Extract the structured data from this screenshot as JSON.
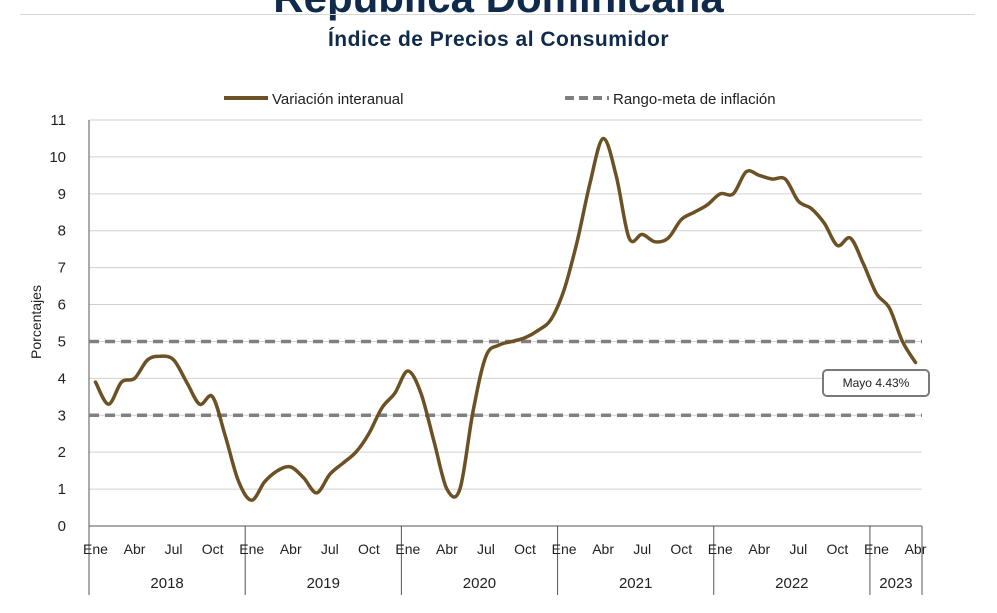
{
  "header": {
    "title": "República Dominicana",
    "subtitle": "Índice de Precios al Consumidor"
  },
  "chart_data": {
    "type": "line",
    "ylabel": "Porcentajes",
    "ylim": [
      0,
      11
    ],
    "yticks": [
      "0",
      "1",
      "2",
      "3",
      "4",
      "5",
      "6",
      "7",
      "8",
      "9",
      "10",
      "11"
    ],
    "grid": true,
    "legend_position": "top",
    "month_ticks": [
      "Ene",
      "Abr",
      "Jul",
      "Oct",
      "Ene",
      "Abr",
      "Jul",
      "Oct",
      "Ene",
      "Abr",
      "Jul",
      "Oct",
      "Ene",
      "Abr",
      "Jul",
      "Oct",
      "Ene",
      "Abr",
      "Jul",
      "Oct",
      "Ene",
      "Abr"
    ],
    "years": [
      "2018",
      "2019",
      "2020",
      "2021",
      "2022",
      "2023"
    ],
    "series": [
      {
        "name": "Variación interanual",
        "color": "#6b5124",
        "style": "solid",
        "values": [
          3.9,
          3.3,
          3.9,
          4.0,
          4.5,
          4.6,
          4.5,
          3.9,
          3.3,
          3.5,
          2.4,
          1.2,
          0.7,
          1.2,
          1.5,
          1.6,
          1.3,
          0.9,
          1.4,
          1.7,
          2.0,
          2.5,
          3.2,
          3.6,
          4.2,
          3.6,
          2.3,
          1.0,
          1.0,
          3.1,
          4.6,
          4.9,
          5.0,
          5.1,
          5.3,
          5.6,
          6.4,
          7.7,
          9.3,
          10.5,
          9.5,
          7.8,
          7.9,
          7.7,
          7.8,
          8.3,
          8.5,
          8.7,
          9.0,
          9.0,
          9.6,
          9.5,
          9.4,
          9.4,
          8.8,
          8.6,
          8.2,
          7.6,
          7.8,
          7.1,
          6.3,
          5.9,
          5.0,
          4.43
        ]
      },
      {
        "name": "Rango-meta de inflación",
        "color": "#808080",
        "style": "dashed",
        "bands": [
          3,
          5
        ]
      }
    ],
    "annotation": {
      "text": "Mayo 4.43%",
      "value": 4.43,
      "month_index": 63
    }
  }
}
